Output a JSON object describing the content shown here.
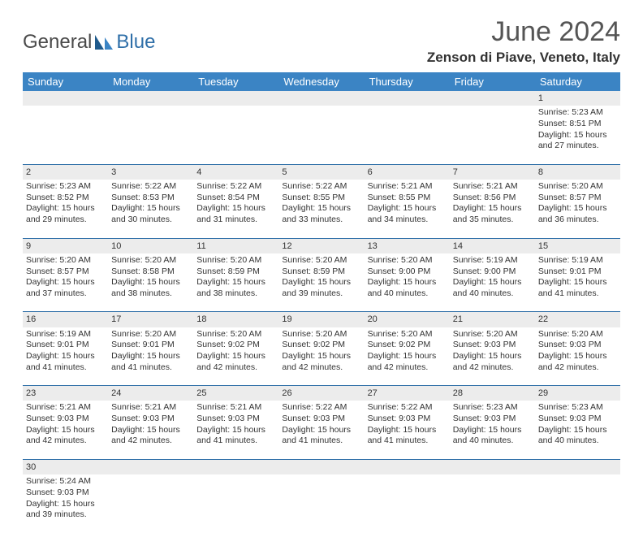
{
  "brand": {
    "word1": "General",
    "word2": "Blue"
  },
  "title": "June 2024",
  "location": "Zenson di Piave, Veneto, Italy",
  "colors": {
    "header_bg": "#3b84c4",
    "header_text": "#ffffff",
    "date_row_bg": "#ececec",
    "rule": "#2f6fa8",
    "brand_blue": "#2f6fa8",
    "brand_gray": "#4a4a4a"
  },
  "typography": {
    "title_fontsize": 34,
    "location_fontsize": 17,
    "header_fontsize": 13,
    "cell_fontsize": 10.5
  },
  "dow": [
    "Sunday",
    "Monday",
    "Tuesday",
    "Wednesday",
    "Thursday",
    "Friday",
    "Saturday"
  ],
  "weeks": [
    [
      null,
      null,
      null,
      null,
      null,
      null,
      {
        "d": "1",
        "r": "5:23 AM",
        "s": "8:51 PM",
        "dl": "15 hours and 27 minutes."
      }
    ],
    [
      {
        "d": "2",
        "r": "5:23 AM",
        "s": "8:52 PM",
        "dl": "15 hours and 29 minutes."
      },
      {
        "d": "3",
        "r": "5:22 AM",
        "s": "8:53 PM",
        "dl": "15 hours and 30 minutes."
      },
      {
        "d": "4",
        "r": "5:22 AM",
        "s": "8:54 PM",
        "dl": "15 hours and 31 minutes."
      },
      {
        "d": "5",
        "r": "5:22 AM",
        "s": "8:55 PM",
        "dl": "15 hours and 33 minutes."
      },
      {
        "d": "6",
        "r": "5:21 AM",
        "s": "8:55 PM",
        "dl": "15 hours and 34 minutes."
      },
      {
        "d": "7",
        "r": "5:21 AM",
        "s": "8:56 PM",
        "dl": "15 hours and 35 minutes."
      },
      {
        "d": "8",
        "r": "5:20 AM",
        "s": "8:57 PM",
        "dl": "15 hours and 36 minutes."
      }
    ],
    [
      {
        "d": "9",
        "r": "5:20 AM",
        "s": "8:57 PM",
        "dl": "15 hours and 37 minutes."
      },
      {
        "d": "10",
        "r": "5:20 AM",
        "s": "8:58 PM",
        "dl": "15 hours and 38 minutes."
      },
      {
        "d": "11",
        "r": "5:20 AM",
        "s": "8:59 PM",
        "dl": "15 hours and 38 minutes."
      },
      {
        "d": "12",
        "r": "5:20 AM",
        "s": "8:59 PM",
        "dl": "15 hours and 39 minutes."
      },
      {
        "d": "13",
        "r": "5:20 AM",
        "s": "9:00 PM",
        "dl": "15 hours and 40 minutes."
      },
      {
        "d": "14",
        "r": "5:19 AM",
        "s": "9:00 PM",
        "dl": "15 hours and 40 minutes."
      },
      {
        "d": "15",
        "r": "5:19 AM",
        "s": "9:01 PM",
        "dl": "15 hours and 41 minutes."
      }
    ],
    [
      {
        "d": "16",
        "r": "5:19 AM",
        "s": "9:01 PM",
        "dl": "15 hours and 41 minutes."
      },
      {
        "d": "17",
        "r": "5:20 AM",
        "s": "9:01 PM",
        "dl": "15 hours and 41 minutes."
      },
      {
        "d": "18",
        "r": "5:20 AM",
        "s": "9:02 PM",
        "dl": "15 hours and 42 minutes."
      },
      {
        "d": "19",
        "r": "5:20 AM",
        "s": "9:02 PM",
        "dl": "15 hours and 42 minutes."
      },
      {
        "d": "20",
        "r": "5:20 AM",
        "s": "9:02 PM",
        "dl": "15 hours and 42 minutes."
      },
      {
        "d": "21",
        "r": "5:20 AM",
        "s": "9:03 PM",
        "dl": "15 hours and 42 minutes."
      },
      {
        "d": "22",
        "r": "5:20 AM",
        "s": "9:03 PM",
        "dl": "15 hours and 42 minutes."
      }
    ],
    [
      {
        "d": "23",
        "r": "5:21 AM",
        "s": "9:03 PM",
        "dl": "15 hours and 42 minutes."
      },
      {
        "d": "24",
        "r": "5:21 AM",
        "s": "9:03 PM",
        "dl": "15 hours and 42 minutes."
      },
      {
        "d": "25",
        "r": "5:21 AM",
        "s": "9:03 PM",
        "dl": "15 hours and 41 minutes."
      },
      {
        "d": "26",
        "r": "5:22 AM",
        "s": "9:03 PM",
        "dl": "15 hours and 41 minutes."
      },
      {
        "d": "27",
        "r": "5:22 AM",
        "s": "9:03 PM",
        "dl": "15 hours and 41 minutes."
      },
      {
        "d": "28",
        "r": "5:23 AM",
        "s": "9:03 PM",
        "dl": "15 hours and 40 minutes."
      },
      {
        "d": "29",
        "r": "5:23 AM",
        "s": "9:03 PM",
        "dl": "15 hours and 40 minutes."
      }
    ],
    [
      {
        "d": "30",
        "r": "5:24 AM",
        "s": "9:03 PM",
        "dl": "15 hours and 39 minutes."
      },
      null,
      null,
      null,
      null,
      null,
      null
    ]
  ],
  "labels": {
    "sunrise": "Sunrise: ",
    "sunset": "Sunset: ",
    "daylight": "Daylight: "
  }
}
